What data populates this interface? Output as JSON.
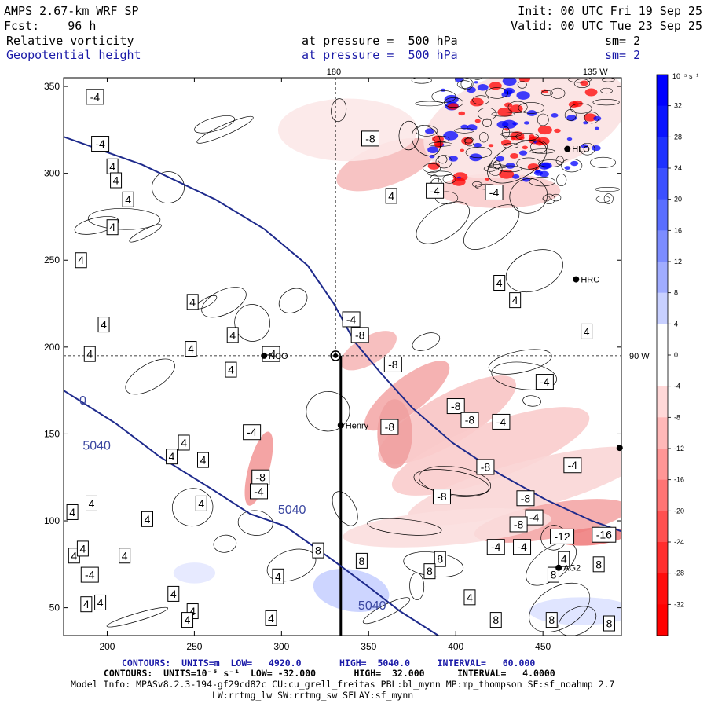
{
  "header": {
    "model": "AMPS 2.67-km WRF SP",
    "fcst_label": "Fcst:",
    "fcst_value": "96 h",
    "init_label": "Init:",
    "init_value": "00 UTC Fri 19 Sep 25",
    "valid_label": "Valid:",
    "valid_value": "00 UTC Tue 23 Sep 25",
    "field1": "Relative vorticity",
    "field1_level": "at pressure =  500 hPa",
    "field1_sm": "sm= 2",
    "field2": "Geopotential height",
    "field2_level": "at pressure =  500 hPa",
    "field2_sm": "sm= 2"
  },
  "colors": {
    "height_contour": "#1e2a8c",
    "vort_positive": "#0000ff",
    "vort_negative": "#ff0000",
    "text_blue": "#1a1aa8"
  },
  "chart_data": {
    "type": "heatmap",
    "title": "Relative vorticity and Geopotential height at 500 hPa",
    "xlim": [
      175,
      495
    ],
    "ylim": [
      34,
      355
    ],
    "x_ticks": [
      200,
      250,
      300,
      350,
      400,
      450
    ],
    "y_ticks": [
      50,
      100,
      150,
      200,
      250,
      300,
      350
    ],
    "meridian_labels": [
      {
        "text": "180",
        "x": 330
      },
      {
        "text": "135 W",
        "x": 480
      }
    ],
    "parallel_label": {
      "text": "90 W",
      "y": 195
    },
    "height_contours": {
      "units": "m",
      "low": 4920.0,
      "high": 5040.0,
      "interval": 60.0,
      "labels": [
        {
          "text": "0",
          "x": 186,
          "y": 167
        },
        {
          "text": "5040",
          "x": 194,
          "y": 141
        },
        {
          "text": "5040",
          "x": 306,
          "y": 104
        },
        {
          "text": "5040",
          "x": 352,
          "y": 49
        }
      ],
      "lines": [
        [
          [
            175,
            321
          ],
          [
            220,
            305
          ],
          [
            262,
            285
          ],
          [
            290,
            268
          ],
          [
            315,
            247
          ],
          [
            330,
            225
          ],
          [
            342,
            203
          ],
          [
            357,
            185
          ],
          [
            375,
            165
          ],
          [
            398,
            145
          ],
          [
            425,
            127
          ],
          [
            452,
            112
          ],
          [
            478,
            100
          ],
          [
            495,
            94
          ]
        ],
        [
          [
            175,
            175
          ],
          [
            205,
            156
          ],
          [
            230,
            137
          ],
          [
            262,
            117
          ],
          [
            282,
            104
          ],
          [
            302,
            97
          ],
          [
            330,
            77
          ],
          [
            350,
            62
          ],
          [
            368,
            48
          ],
          [
            390,
            34
          ]
        ]
      ]
    },
    "vorticity_contours": {
      "units": "10^-5 s^-1",
      "low": -32.0,
      "high": 32.0,
      "interval": 4.0,
      "labels": [
        {
          "v": "-4",
          "x": 193,
          "y": 344
        },
        {
          "v": "-4",
          "x": 196,
          "y": 317
        },
        {
          "v": "4",
          "x": 203,
          "y": 304
        },
        {
          "v": "4",
          "x": 205,
          "y": 296
        },
        {
          "v": "4",
          "x": 212,
          "y": 285
        },
        {
          "v": "4",
          "x": 185,
          "y": 250
        },
        {
          "v": "4",
          "x": 203,
          "y": 269
        },
        {
          "v": "4",
          "x": 249,
          "y": 226
        },
        {
          "v": "4",
          "x": 248,
          "y": 199
        },
        {
          "v": "4",
          "x": 198,
          "y": 213
        },
        {
          "v": "4",
          "x": 190,
          "y": 196
        },
        {
          "v": "-4",
          "x": 294,
          "y": 196
        },
        {
          "v": "4",
          "x": 272,
          "y": 207
        },
        {
          "v": "-4",
          "x": 340,
          "y": 216
        },
        {
          "v": "-8",
          "x": 345,
          "y": 207
        },
        {
          "v": "-8",
          "x": 364,
          "y": 190
        },
        {
          "v": "-8",
          "x": 351,
          "y": 320
        },
        {
          "v": "-4",
          "x": 388,
          "y": 290
        },
        {
          "v": "4",
          "x": 363,
          "y": 287
        },
        {
          "v": "-4",
          "x": 422,
          "y": 289
        },
        {
          "v": "4",
          "x": 425,
          "y": 237
        },
        {
          "v": "4",
          "x": 434,
          "y": 227
        },
        {
          "v": "4",
          "x": 475,
          "y": 209
        },
        {
          "v": "-4",
          "x": 451,
          "y": 180
        },
        {
          "v": "-8",
          "x": 400,
          "y": 166
        },
        {
          "v": "-8",
          "x": 408,
          "y": 158
        },
        {
          "v": "-4",
          "x": 426,
          "y": 157
        },
        {
          "v": "-8",
          "x": 362,
          "y": 154
        },
        {
          "v": "-4",
          "x": 467,
          "y": 132
        },
        {
          "v": "-8",
          "x": 417,
          "y": 131
        },
        {
          "v": "-8",
          "x": 392,
          "y": 114
        },
        {
          "v": "-8",
          "x": 440,
          "y": 113
        },
        {
          "v": "-4",
          "x": 445,
          "y": 102
        },
        {
          "v": "-8",
          "x": 436,
          "y": 98
        },
        {
          "v": "-12",
          "x": 461,
          "y": 91
        },
        {
          "v": "-16",
          "x": 485,
          "y": 92
        },
        {
          "v": "-4",
          "x": 423,
          "y": 85
        },
        {
          "v": "-4",
          "x": 438,
          "y": 85
        },
        {
          "v": "4",
          "x": 462,
          "y": 78
        },
        {
          "v": "8",
          "x": 482,
          "y": 75
        },
        {
          "v": "8",
          "x": 456,
          "y": 69
        },
        {
          "v": "4",
          "x": 408,
          "y": 56
        },
        {
          "v": "8",
          "x": 423,
          "y": 43
        },
        {
          "v": "8",
          "x": 455,
          "y": 43
        },
        {
          "v": "8",
          "x": 488,
          "y": 41
        },
        {
          "v": "8",
          "x": 391,
          "y": 78
        },
        {
          "v": "8",
          "x": 385,
          "y": 71
        },
        {
          "v": "4",
          "x": 294,
          "y": 44
        },
        {
          "v": "4",
          "x": 298,
          "y": 68
        },
        {
          "v": "4",
          "x": 238,
          "y": 58
        },
        {
          "v": "4",
          "x": 249,
          "y": 48
        },
        {
          "v": "4",
          "x": 196,
          "y": 53
        },
        {
          "v": "4",
          "x": 191,
          "y": 110
        },
        {
          "v": "4",
          "x": 181,
          "y": 80
        },
        {
          "v": "4",
          "x": 255,
          "y": 135
        },
        {
          "v": "4",
          "x": 237,
          "y": 137
        },
        {
          "v": "4",
          "x": 210,
          "y": 80
        },
        {
          "v": "4",
          "x": 188,
          "y": 52
        },
        {
          "v": "4",
          "x": 223,
          "y": 101
        },
        {
          "v": "4",
          "x": 186,
          "y": 84
        },
        {
          "v": "-4",
          "x": 283,
          "y": 151
        },
        {
          "v": "-8",
          "x": 288,
          "y": 125
        },
        {
          "v": "-4",
          "x": 287,
          "y": 117
        },
        {
          "v": "4",
          "x": 244,
          "y": 145
        },
        {
          "v": "4",
          "x": 254,
          "y": 110
        },
        {
          "v": "-4",
          "x": 190,
          "y": 69
        },
        {
          "v": "4",
          "x": 271,
          "y": 187
        },
        {
          "v": "4",
          "x": 246,
          "y": 43
        },
        {
          "v": "8",
          "x": 321,
          "y": 83
        },
        {
          "v": "8",
          "x": 346,
          "y": 77
        },
        {
          "v": "4",
          "x": 180,
          "y": 105
        }
      ]
    },
    "stations": [
      {
        "name": "NCO",
        "x": 290,
        "y": 195
      },
      {
        "name": "Henry",
        "x": 334,
        "y": 155
      },
      {
        "name": "HRC",
        "x": 469,
        "y": 239
      },
      {
        "name": "AG2",
        "x": 459,
        "y": 73
      },
      {
        "name": "HLO",
        "x": 464,
        "y": 314
      },
      {
        "name": "",
        "x": 494,
        "y": 142
      }
    ],
    "pole_marker": {
      "x": 331,
      "y": 195
    },
    "cross_section": {
      "x": 334,
      "y_from": 195,
      "y_to": 34
    },
    "colorbar": {
      "unit_label": "10⁻⁵ s⁻¹",
      "levels": [
        32,
        28,
        24,
        20,
        16,
        12,
        8,
        4,
        0,
        -4,
        -8,
        -12,
        -16,
        -20,
        -24,
        -28,
        -32
      ],
      "colors": [
        "#0000ff",
        "#0a14ff",
        "#1e32ff",
        "#3c50ff",
        "#5a6eff",
        "#7c8cff",
        "#a0acff",
        "#c8d0ff",
        "#ffffff",
        "#ffffff",
        "#ffd8d8",
        "#ffb8b8",
        "#ff9696",
        "#ff7474",
        "#ff5050",
        "#ff2e2e",
        "#ff0c0c",
        "#ff0000"
      ]
    }
  },
  "footer": {
    "line1_label": "CONTOURS:",
    "line1_units": "UNITS=m",
    "line1_low": "LOW=   4920.0",
    "line1_high": "HIGH=  5040.0",
    "line1_interval": "INTERVAL=   60.000",
    "line2_label": "CONTOURS:",
    "line2_units": "UNITS=10⁻⁵ s⁻¹",
    "line2_low": "LOW= -32.000",
    "line2_high": "HIGH=  32.000",
    "line2_interval": "INTERVAL=   4.0000",
    "model_info": "Model Info: MPASv8.2.3-194-gf29cd82c CU:cu_grell_freitas PBL:bl_mynn MP:mp_thompson SF:sf_noahmp 2.7",
    "model_info2": "LW:rrtmg_lw SW:rrtmg_sw SFLAY:sf_mynn"
  }
}
